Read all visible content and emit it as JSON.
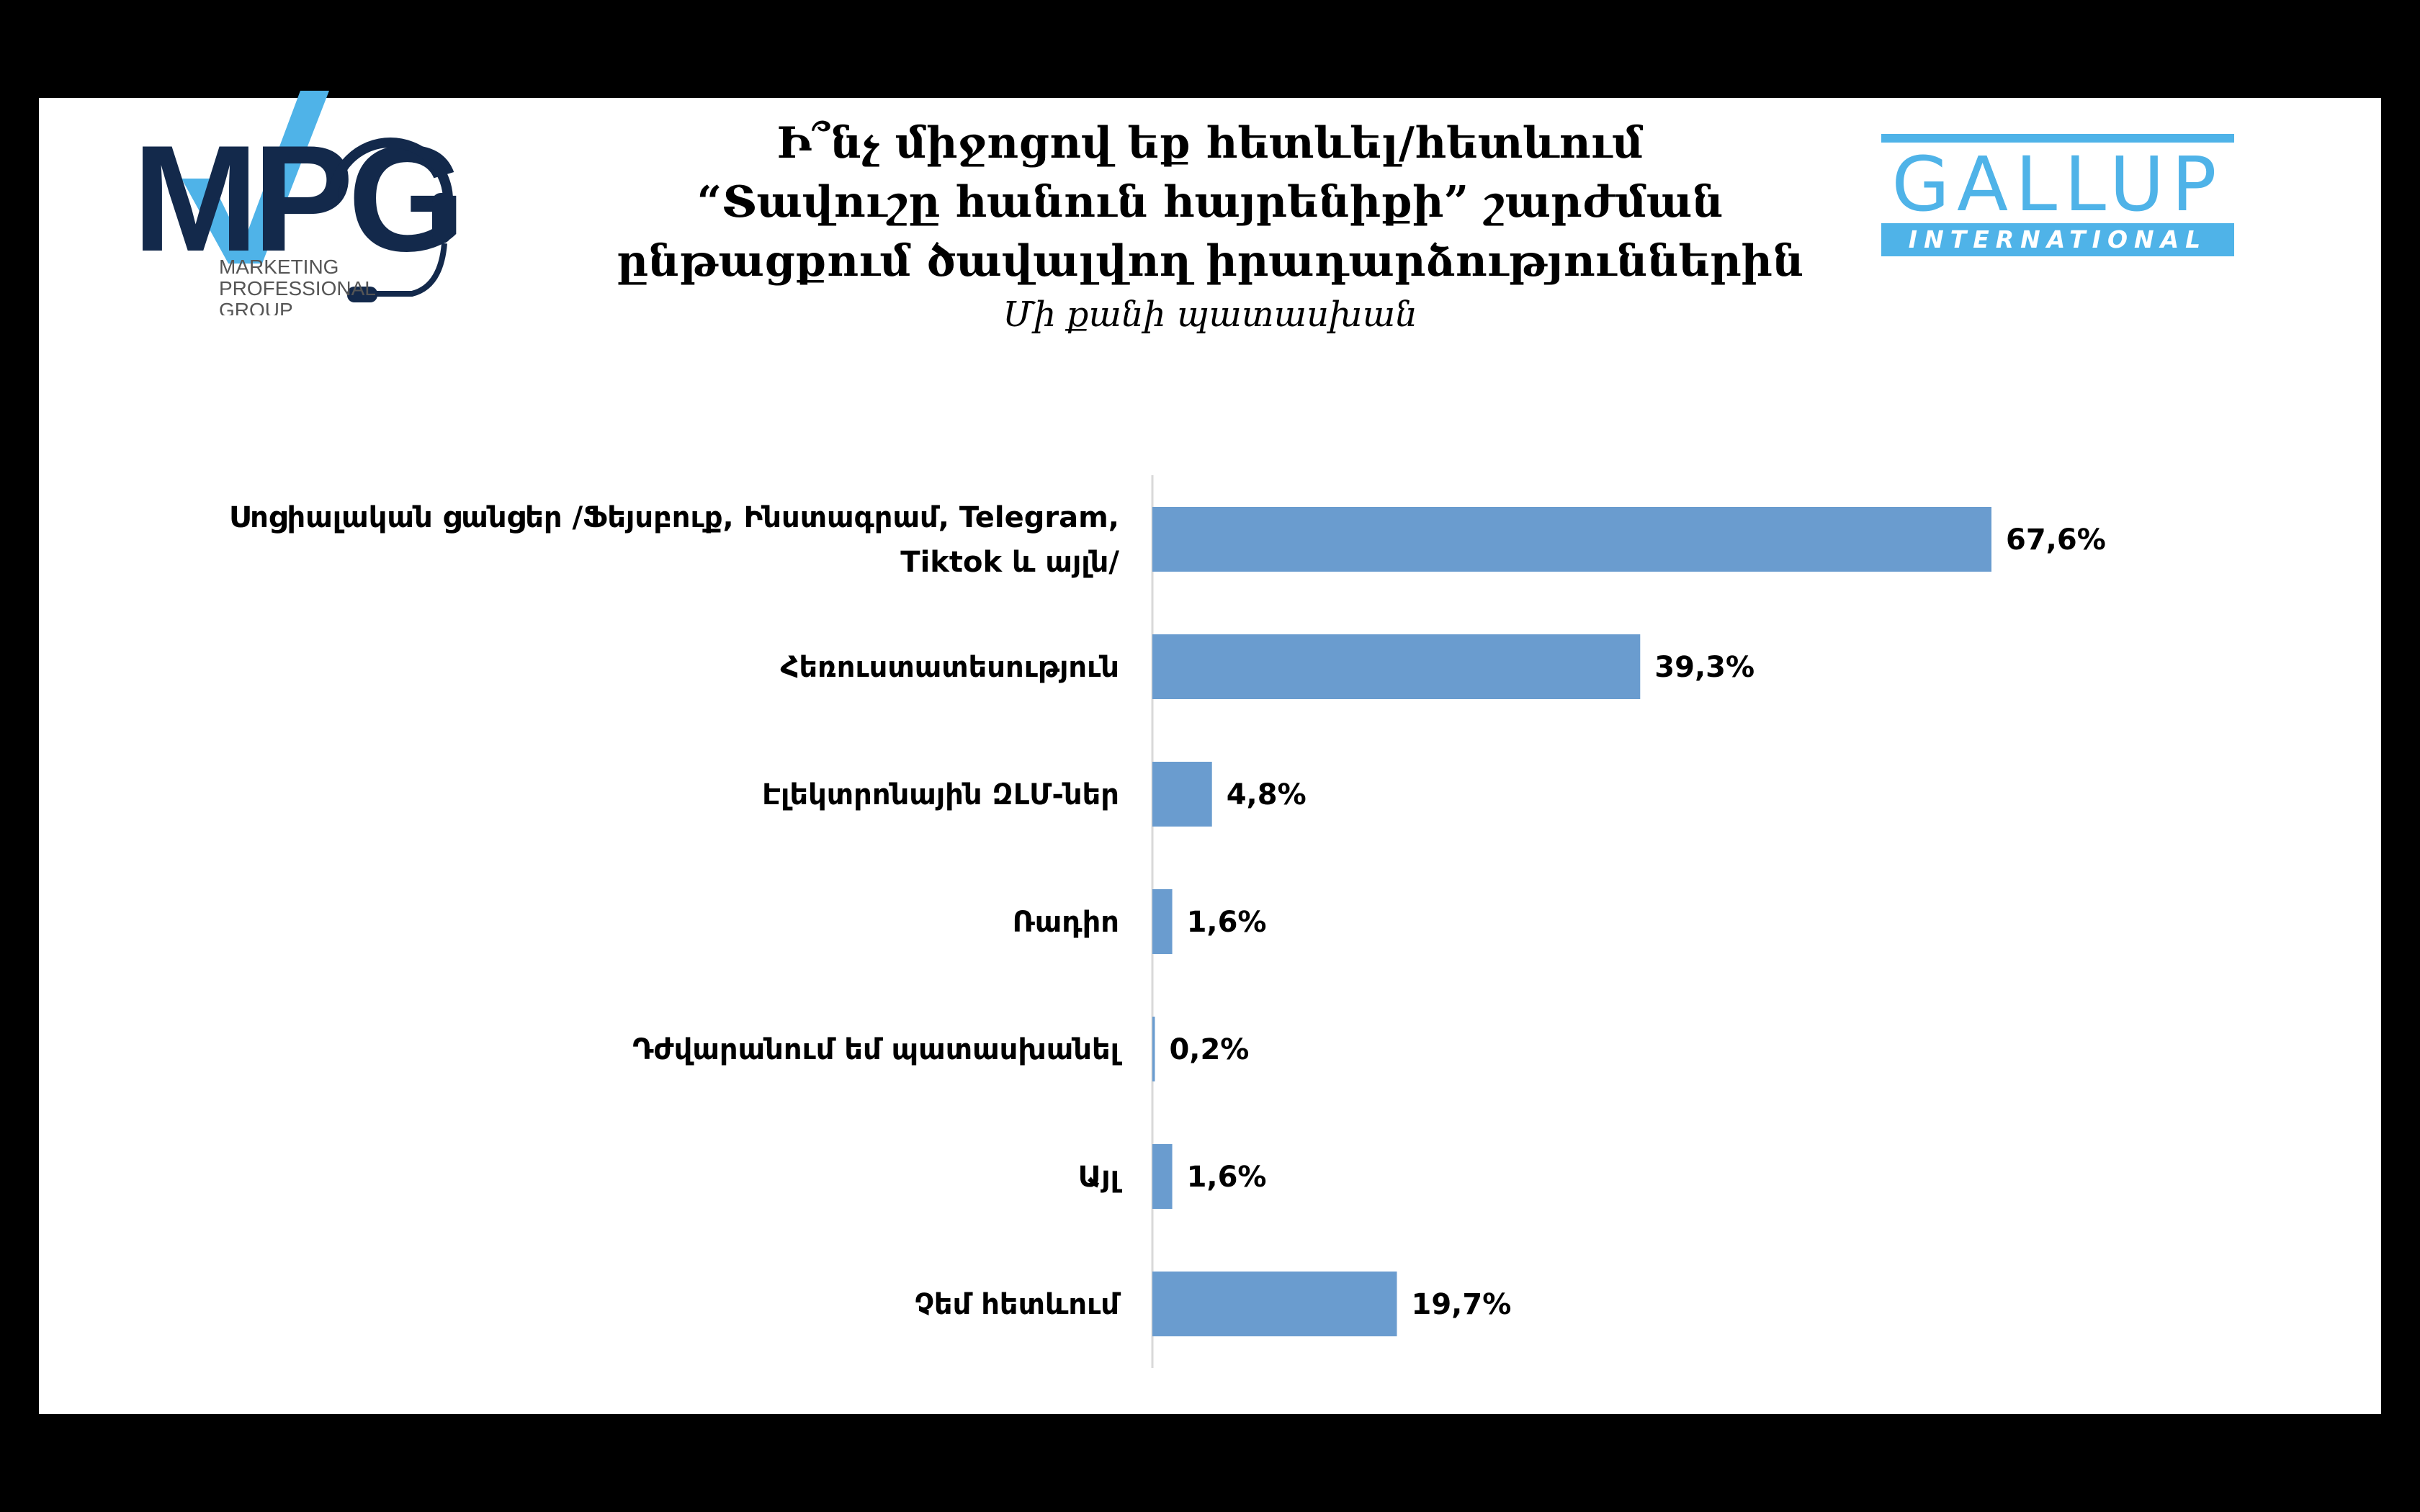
{
  "title": {
    "lines": [
      "Ի՞նչ միջոցով եք հետևել/հետևում",
      "“Տավուշը հանուն հայրենիքի” շարժման",
      "ընթացքում ծավալվող իրադարձություններին"
    ],
    "subtitle": "Մի քանի պատասխան"
  },
  "logos": {
    "mpg_letters": "MPG",
    "mpg_tagline": [
      "MARKETING",
      "PROFESSIONAL",
      "GROUP"
    ],
    "gallup_word": "GALLUP",
    "gallup_sub": "INTERNATIONAL"
  },
  "colors": {
    "bar": "#6a9ccf",
    "axis": "#d9d9d9",
    "mpg_dark": "#13294b",
    "mpg_light": "#4fb3e8",
    "gallup": "#4fb3e8"
  },
  "chart_data": {
    "type": "bar",
    "orientation": "horizontal",
    "categories": [
      [
        "Սոցիալական ցանցեր /Ֆեյսբուք, Ինստագրամ, Telegram,",
        "Tiktok և այլն/"
      ],
      [
        "Հեռուստատեսություն"
      ],
      [
        "Էլեկտրոնային ԶԼՄ-ներ"
      ],
      [
        "Ռադիո"
      ],
      [
        "Դժվարանում եմ պատասխանել"
      ],
      [
        "Այլ"
      ],
      [
        "Չեմ հետևում"
      ]
    ],
    "values": [
      67.6,
      39.3,
      4.8,
      1.6,
      0.2,
      1.6,
      19.7
    ],
    "value_labels": [
      "67,6%",
      "39,3%",
      "4,8%",
      "1,6%",
      "0,2%",
      "1,6%",
      "19,7%"
    ],
    "xlim": [
      0,
      80
    ],
    "grid": false,
    "legend": "none"
  }
}
